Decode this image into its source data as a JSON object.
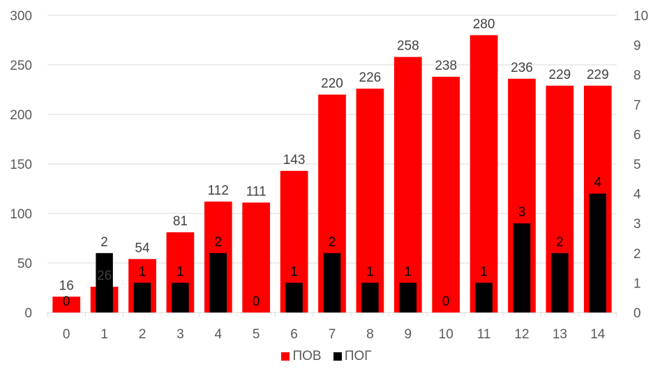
{
  "chart_data": {
    "type": "bar",
    "categories": [
      "0",
      "1",
      "2",
      "3",
      "4",
      "5",
      "6",
      "7",
      "8",
      "9",
      "10",
      "11",
      "12",
      "13",
      "14"
    ],
    "series": [
      {
        "name": "ПОВ",
        "axis": "left",
        "color": "#ff0000",
        "values": [
          16,
          26,
          54,
          81,
          112,
          111,
          143,
          220,
          226,
          258,
          238,
          280,
          236,
          229,
          229
        ]
      },
      {
        "name": "ПОГ",
        "axis": "right",
        "color": "#000000",
        "values": [
          0,
          2,
          1,
          1,
          2,
          0,
          1,
          2,
          1,
          1,
          0,
          1,
          3,
          2,
          4
        ]
      }
    ],
    "y_left": {
      "min": 0,
      "max": 300,
      "ticks": [
        0,
        50,
        100,
        150,
        200,
        250,
        300
      ]
    },
    "y_right": {
      "min": 0,
      "max": 10,
      "ticks": [
        0,
        1,
        2,
        3,
        4,
        5,
        6,
        7,
        8,
        9,
        10
      ]
    },
    "grid": true,
    "legend_position": "bottom"
  }
}
